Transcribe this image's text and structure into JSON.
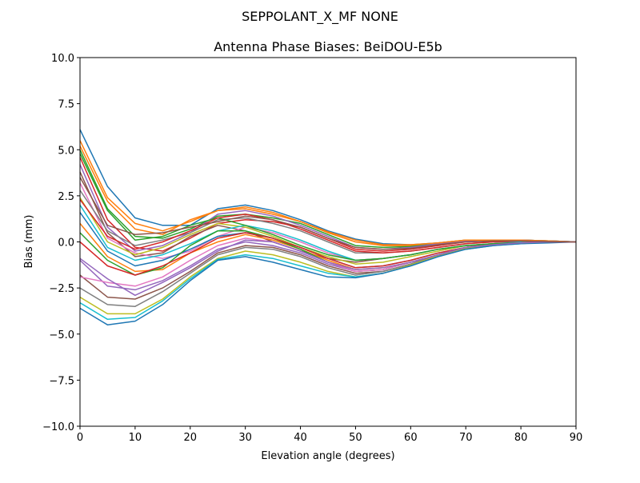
{
  "chart_data": {
    "type": "line",
    "suptitle": "SEPPOLANT_X_MF  NONE",
    "title": "Antenna Phase Biases: BeiDOU-E5b",
    "xlabel": "Elevation angle (degrees)",
    "ylabel": "Bias (mm)",
    "xlim": [
      0,
      90
    ],
    "ylim": [
      -10,
      10
    ],
    "xticks": [
      0,
      10,
      20,
      30,
      40,
      50,
      60,
      70,
      80,
      90
    ],
    "xtick_labels": [
      "0",
      "10",
      "20",
      "30",
      "40",
      "50",
      "60",
      "70",
      "80",
      "90"
    ],
    "yticks": [
      10,
      7.5,
      5,
      2.5,
      0,
      -2.5,
      -5,
      -7.5,
      -10
    ],
    "ytick_labels": [
      "10.0",
      "7.5",
      "5.0",
      "2.5",
      "0.0",
      "−2.5",
      "−5.0",
      "−7.5",
      "−10.0"
    ],
    "grid": false,
    "colors": [
      "#1f77b4",
      "#ff7f0e",
      "#2ca02c",
      "#d62728",
      "#9467bd",
      "#8c564b",
      "#e377c2",
      "#7f7f7f",
      "#bcbd22",
      "#17becf"
    ],
    "x": [
      0,
      5,
      10,
      15,
      20,
      25,
      30,
      35,
      40,
      45,
      50,
      55,
      60,
      65,
      70,
      75,
      80,
      85,
      90
    ],
    "series": [
      {
        "values": [
          6.1,
          3.0,
          1.3,
          0.9,
          0.9,
          1.8,
          2.0,
          1.7,
          1.2,
          0.6,
          0.15,
          -0.1,
          -0.15,
          -0.05,
          0.1,
          0.1,
          0.1,
          0.05,
          0
        ]
      },
      {
        "values": [
          5.5,
          2.4,
          1.0,
          0.6,
          1.1,
          1.7,
          1.8,
          1.5,
          1.1,
          0.5,
          0.0,
          -0.2,
          -0.2,
          -0.05,
          0.1,
          0.1,
          0.1,
          0.05,
          0
        ]
      },
      {
        "values": [
          5.0,
          1.8,
          0.3,
          0.2,
          0.7,
          1.4,
          1.5,
          1.3,
          1.0,
          0.4,
          -0.2,
          -0.3,
          -0.25,
          -0.1,
          0.05,
          0.1,
          0.1,
          0.05,
          0
        ]
      },
      {
        "values": [
          4.6,
          1.2,
          -0.3,
          -0.5,
          0.2,
          1.0,
          1.2,
          1.1,
          0.8,
          0.2,
          -0.4,
          -0.5,
          -0.4,
          -0.2,
          0,
          0.05,
          0.05,
          0.03,
          0
        ]
      },
      {
        "values": [
          4.2,
          0.8,
          -0.5,
          -0.2,
          0.5,
          1.5,
          1.7,
          1.4,
          0.9,
          0.3,
          -0.3,
          -0.4,
          -0.3,
          -0.1,
          0.05,
          0.1,
          0.1,
          0.05,
          0
        ]
      },
      {
        "values": [
          3.8,
          0.5,
          -0.8,
          -0.6,
          0.3,
          0.9,
          0.6,
          0.0,
          -0.5,
          -0.9,
          -1.1,
          -0.9,
          -0.7,
          -0.4,
          -0.2,
          -0.1,
          -0.05,
          0,
          0
        ]
      },
      {
        "values": [
          3.2,
          0.2,
          -0.6,
          -0.9,
          -0.5,
          0.3,
          0.8,
          0.5,
          0.0,
          -0.6,
          -1.0,
          -0.9,
          -0.7,
          -0.4,
          -0.2,
          -0.1,
          -0.05,
          0,
          0
        ]
      },
      {
        "values": [
          2.8,
          0.6,
          -0.2,
          0.1,
          0.5,
          1.2,
          1.3,
          1.0,
          0.6,
          0.0,
          -0.6,
          -0.6,
          -0.5,
          -0.3,
          -0.1,
          0,
          0,
          0,
          0
        ]
      },
      {
        "values": [
          2.4,
          0.0,
          -0.7,
          -0.3,
          0.4,
          1.0,
          0.8,
          0.3,
          -0.3,
          -0.8,
          -1.2,
          -1.1,
          -0.8,
          -0.5,
          -0.2,
          -0.1,
          -0.05,
          0,
          0
        ]
      },
      {
        "values": [
          2.0,
          -0.3,
          -1.0,
          -0.7,
          -0.1,
          0.6,
          0.9,
          0.6,
          0.1,
          -0.5,
          -1.0,
          -0.9,
          -0.7,
          -0.4,
          -0.2,
          -0.1,
          0,
          0,
          0
        ]
      },
      {
        "values": [
          1.6,
          -0.5,
          -1.3,
          -1.0,
          -0.4,
          0.3,
          0.5,
          0.2,
          -0.3,
          -0.9,
          -1.4,
          -1.3,
          -1.0,
          -0.6,
          -0.3,
          -0.1,
          -0.05,
          0,
          0
        ]
      },
      {
        "values": [
          1.0,
          -0.8,
          -1.6,
          -1.5,
          -0.6,
          0.0,
          0.4,
          0.1,
          -0.4,
          -1.0,
          -1.5,
          -1.4,
          -1.1,
          -0.7,
          -0.3,
          -0.15,
          -0.05,
          0,
          0
        ]
      },
      {
        "values": [
          0.5,
          -1.0,
          -1.8,
          -1.4,
          -0.2,
          0.6,
          0.6,
          0.2,
          -0.4,
          -1.1,
          -1.6,
          -1.5,
          -1.1,
          -0.7,
          -0.3,
          -0.15,
          -0.05,
          0,
          0
        ]
      },
      {
        "values": [
          0.0,
          -1.3,
          -1.8,
          -1.3,
          -0.6,
          0.2,
          0.5,
          0.2,
          -0.3,
          -0.9,
          -1.4,
          -1.3,
          -1.0,
          -0.6,
          -0.3,
          -0.1,
          -0.05,
          0,
          0
        ]
      },
      {
        "values": [
          -1.0,
          -2.4,
          -2.6,
          -2.1,
          -1.3,
          -0.4,
          0.0,
          -0.2,
          -0.6,
          -1.2,
          -1.6,
          -1.5,
          -1.1,
          -0.7,
          -0.3,
          -0.15,
          -0.05,
          0,
          0
        ]
      },
      {
        "values": [
          -1.8,
          -3.0,
          -3.1,
          -2.5,
          -1.6,
          -0.6,
          -0.2,
          -0.3,
          -0.7,
          -1.3,
          -1.7,
          -1.6,
          -1.2,
          -0.7,
          -0.35,
          -0.15,
          -0.05,
          0,
          0
        ]
      },
      {
        "values": [
          -1.9,
          -2.2,
          -2.4,
          -1.9,
          -1.0,
          -0.2,
          0.2,
          0.0,
          -0.5,
          -1.1,
          -1.6,
          -1.5,
          -1.1,
          -0.7,
          -0.3,
          -0.15,
          -0.05,
          0,
          0
        ]
      },
      {
        "values": [
          -2.5,
          -3.4,
          -3.5,
          -2.7,
          -1.7,
          -0.7,
          -0.3,
          -0.4,
          -0.8,
          -1.4,
          -1.8,
          -1.6,
          -1.2,
          -0.7,
          -0.35,
          -0.15,
          -0.05,
          0,
          0
        ]
      },
      {
        "values": [
          -3.0,
          -3.9,
          -3.9,
          -3.1,
          -1.9,
          -0.9,
          -0.5,
          -0.7,
          -1.1,
          -1.6,
          -1.9,
          -1.7,
          -1.25,
          -0.75,
          -0.35,
          -0.15,
          -0.05,
          0,
          0
        ]
      },
      {
        "values": [
          -3.3,
          -4.2,
          -4.1,
          -3.2,
          -2.0,
          -0.95,
          -0.7,
          -0.9,
          -1.3,
          -1.7,
          -1.9,
          -1.7,
          -1.3,
          -0.8,
          -0.4,
          -0.2,
          -0.1,
          0,
          0
        ]
      },
      {
        "values": [
          -3.6,
          -4.5,
          -4.3,
          -3.4,
          -2.1,
          -1.0,
          -0.8,
          -1.1,
          -1.5,
          -1.9,
          -1.95,
          -1.7,
          -1.3,
          -0.8,
          -0.4,
          -0.2,
          -0.1,
          -0.05,
          0
        ]
      },
      {
        "values": [
          5.2,
          2.2,
          0.7,
          0.4,
          1.2,
          1.7,
          1.9,
          1.6,
          1.1,
          0.55,
          0.1,
          -0.15,
          -0.15,
          -0.05,
          0.1,
          0.1,
          0.1,
          0.05,
          0
        ]
      },
      {
        "values": [
          4.8,
          1.7,
          0.1,
          0.3,
          0.9,
          1.3,
          0.9,
          0.4,
          -0.2,
          -0.7,
          -1.0,
          -0.9,
          -0.7,
          -0.4,
          -0.2,
          -0.1,
          -0.05,
          0,
          0
        ]
      },
      {
        "values": [
          2.3,
          0.3,
          -0.4,
          0.0,
          0.6,
          1.3,
          1.5,
          1.2,
          0.7,
          0.1,
          -0.5,
          -0.6,
          -0.5,
          -0.3,
          -0.1,
          0,
          0.05,
          0,
          0
        ]
      },
      {
        "values": [
          -0.9,
          -2.0,
          -2.9,
          -2.2,
          -1.4,
          -0.5,
          0.1,
          0.0,
          -0.5,
          -1.1,
          -1.5,
          -1.4,
          -1.1,
          -0.7,
          -0.3,
          -0.15,
          -0.05,
          0,
          0
        ]
      },
      {
        "values": [
          3.5,
          0.9,
          0.4,
          0.5,
          0.8,
          1.1,
          1.4,
          1.2,
          0.8,
          0.2,
          -0.3,
          -0.4,
          -0.35,
          -0.15,
          0,
          0.05,
          0.05,
          0.02,
          0
        ]
      }
    ]
  }
}
